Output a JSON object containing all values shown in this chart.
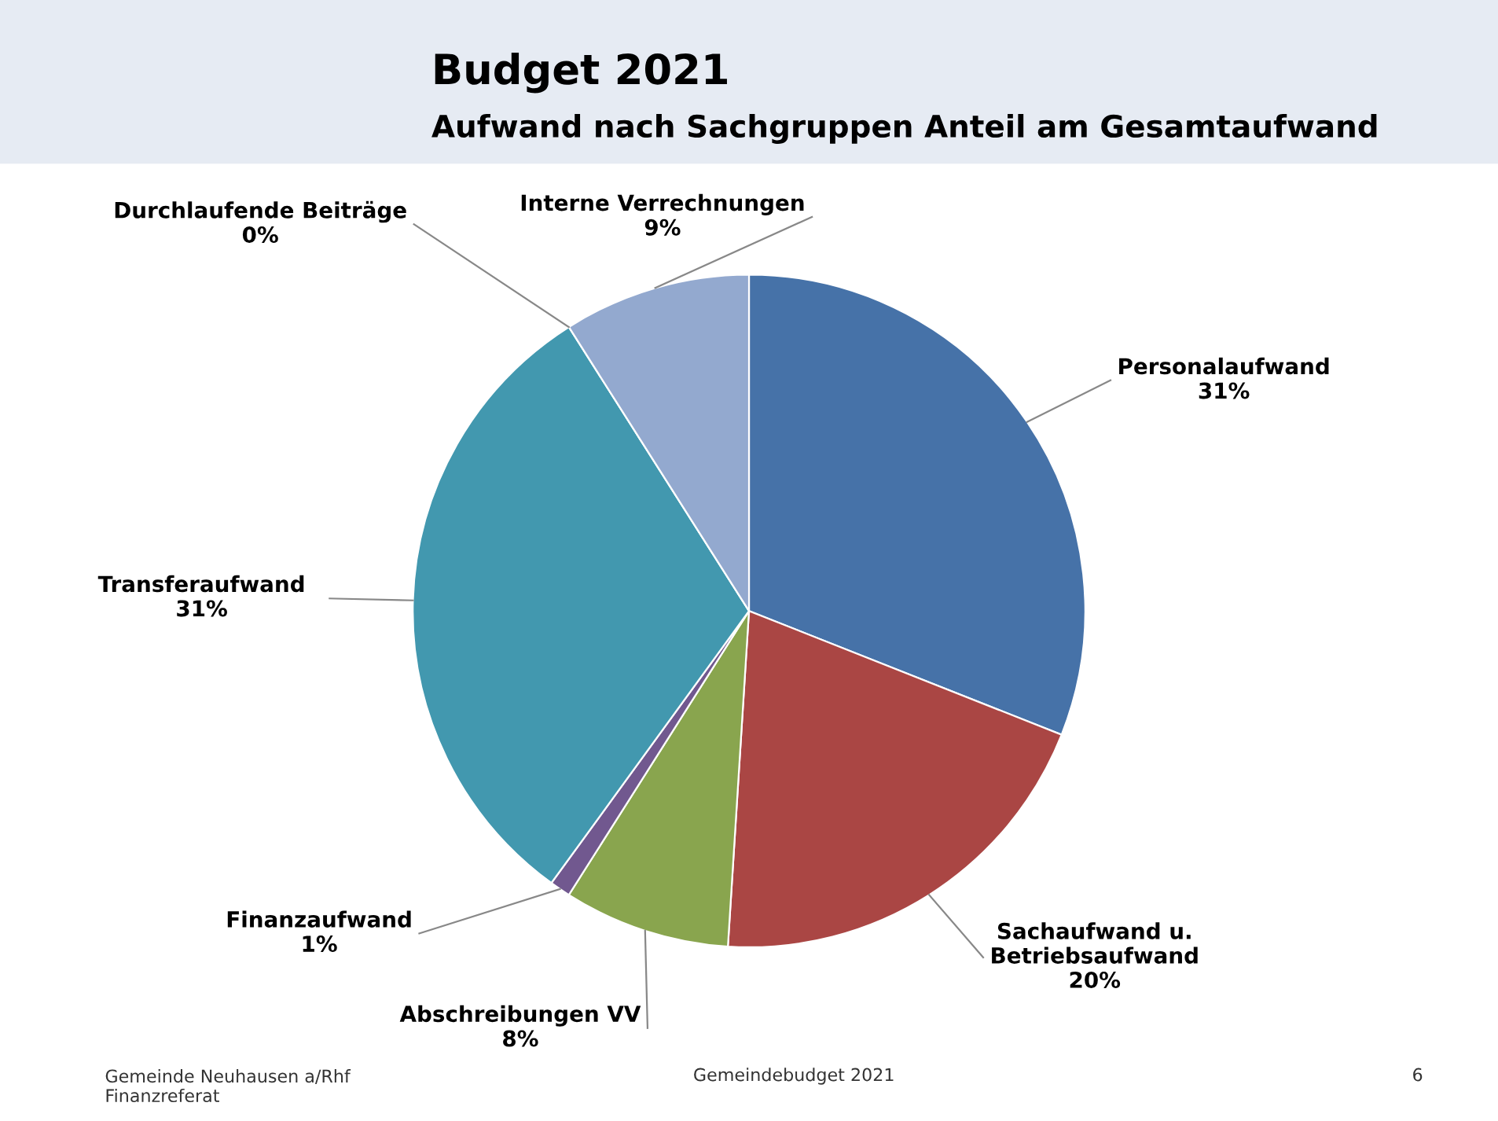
{
  "chart_data": {
    "type": "pie",
    "title": "Budget 2021",
    "subtitle": "Aufwand nach Sachgruppen Anteil am Gesamtaufwand",
    "categories": [
      "Personalaufwand",
      "Sachaufwand u.\nBetriebsaufwand",
      "Abschreibungen VV",
      "Finanzaufwand",
      "Transferaufwand",
      "Durchlaufende Beiträge",
      "Interne Verrechnungen"
    ],
    "values": [
      31,
      20,
      8,
      1,
      31,
      0,
      9
    ],
    "value_labels": [
      "31%",
      "20%",
      "8%",
      "1%",
      "31%",
      "0%",
      "9%"
    ],
    "colors": [
      "#4672a8",
      "#aa4644",
      "#89a54e",
      "#71588f",
      "#4298af",
      "#db843d",
      "#93a9cf"
    ],
    "legend": false,
    "annotations": [
      "Gemeinde Neuhausen a/Rhf\nFinanzreferat",
      "Gemeindebudget 2021",
      "6"
    ]
  }
}
